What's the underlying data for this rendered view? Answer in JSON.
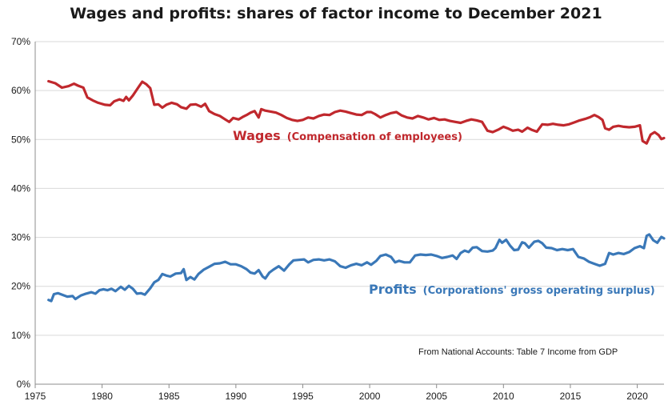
{
  "chart_data": {
    "type": "line",
    "title": "Wages and profits: shares of factor income to December  2021",
    "xlim": [
      1975,
      2022
    ],
    "ylim": [
      0,
      70
    ],
    "x_ticks": [
      "1975",
      "1980",
      "1985",
      "1990",
      "1995",
      "2000",
      "2005",
      "2010",
      "2015",
      "2020"
    ],
    "y_ticks": [
      "0%",
      "10%",
      "20%",
      "30%",
      "40%",
      "50%",
      "60%",
      "70%"
    ],
    "grid": "horizontal",
    "series": [
      {
        "name": "Wages",
        "label_suffix": "(Compensation of employees)",
        "color": "#c0282d",
        "points": [
          [
            1976.0,
            61.9
          ],
          [
            1976.5,
            61.5
          ],
          [
            1977.0,
            60.6
          ],
          [
            1977.5,
            60.9
          ],
          [
            1977.9,
            61.4
          ],
          [
            1978.2,
            61.0
          ],
          [
            1978.6,
            60.6
          ],
          [
            1978.9,
            58.6
          ],
          [
            1979.3,
            58.0
          ],
          [
            1979.7,
            57.5
          ],
          [
            1980.2,
            57.1
          ],
          [
            1980.6,
            57.0
          ],
          [
            1980.9,
            57.8
          ],
          [
            1981.3,
            58.2
          ],
          [
            1981.6,
            57.9
          ],
          [
            1981.8,
            58.7
          ],
          [
            1982.0,
            58.0
          ],
          [
            1982.3,
            59.0
          ],
          [
            1982.6,
            60.2
          ],
          [
            1982.8,
            61.0
          ],
          [
            1983.0,
            61.8
          ],
          [
            1983.3,
            61.3
          ],
          [
            1983.6,
            60.5
          ],
          [
            1983.9,
            57.1
          ],
          [
            1984.2,
            57.2
          ],
          [
            1984.5,
            56.5
          ],
          [
            1984.8,
            57.1
          ],
          [
            1985.2,
            57.5
          ],
          [
            1985.6,
            57.2
          ],
          [
            1985.9,
            56.6
          ],
          [
            1986.3,
            56.3
          ],
          [
            1986.6,
            57.1
          ],
          [
            1987.0,
            57.2
          ],
          [
            1987.4,
            56.7
          ],
          [
            1987.7,
            57.3
          ],
          [
            1988.0,
            55.8
          ],
          [
            1988.4,
            55.2
          ],
          [
            1988.8,
            54.8
          ],
          [
            1989.2,
            54.1
          ],
          [
            1989.5,
            53.6
          ],
          [
            1989.8,
            54.4
          ],
          [
            1990.2,
            54.1
          ],
          [
            1990.5,
            54.6
          ],
          [
            1990.8,
            55.0
          ],
          [
            1991.1,
            55.5
          ],
          [
            1991.4,
            55.8
          ],
          [
            1991.7,
            54.5
          ],
          [
            1991.9,
            56.2
          ],
          [
            1992.2,
            55.9
          ],
          [
            1992.6,
            55.7
          ],
          [
            1993.0,
            55.5
          ],
          [
            1993.4,
            55.0
          ],
          [
            1993.8,
            54.4
          ],
          [
            1994.2,
            54.0
          ],
          [
            1994.6,
            53.8
          ],
          [
            1995.0,
            54.0
          ],
          [
            1995.4,
            54.5
          ],
          [
            1995.8,
            54.3
          ],
          [
            1996.2,
            54.8
          ],
          [
            1996.6,
            55.1
          ],
          [
            1997.0,
            55.0
          ],
          [
            1997.4,
            55.6
          ],
          [
            1997.8,
            55.9
          ],
          [
            1998.2,
            55.7
          ],
          [
            1998.6,
            55.4
          ],
          [
            1999.0,
            55.1
          ],
          [
            1999.4,
            55.0
          ],
          [
            1999.8,
            55.6
          ],
          [
            2000.1,
            55.6
          ],
          [
            2000.4,
            55.2
          ],
          [
            2000.8,
            54.5
          ],
          [
            2001.2,
            55.0
          ],
          [
            2001.6,
            55.4
          ],
          [
            2002.0,
            55.6
          ],
          [
            2002.4,
            54.9
          ],
          [
            2002.8,
            54.5
          ],
          [
            2003.2,
            54.3
          ],
          [
            2003.6,
            54.8
          ],
          [
            2004.0,
            54.5
          ],
          [
            2004.4,
            54.1
          ],
          [
            2004.8,
            54.4
          ],
          [
            2005.2,
            54.0
          ],
          [
            2005.6,
            54.1
          ],
          [
            2006.0,
            53.8
          ],
          [
            2006.4,
            53.6
          ],
          [
            2006.8,
            53.4
          ],
          [
            2007.2,
            53.8
          ],
          [
            2007.6,
            54.1
          ],
          [
            2008.0,
            53.9
          ],
          [
            2008.4,
            53.6
          ],
          [
            2008.8,
            51.8
          ],
          [
            2009.2,
            51.5
          ],
          [
            2009.6,
            52.0
          ],
          [
            2010.0,
            52.6
          ],
          [
            2010.3,
            52.3
          ],
          [
            2010.7,
            51.8
          ],
          [
            2011.1,
            52.0
          ],
          [
            2011.4,
            51.6
          ],
          [
            2011.8,
            52.4
          ],
          [
            2012.1,
            52.0
          ],
          [
            2012.5,
            51.6
          ],
          [
            2012.9,
            53.1
          ],
          [
            2013.3,
            53.0
          ],
          [
            2013.7,
            53.2
          ],
          [
            2014.1,
            53.0
          ],
          [
            2014.5,
            52.9
          ],
          [
            2014.9,
            53.1
          ],
          [
            2015.3,
            53.5
          ],
          [
            2015.7,
            53.9
          ],
          [
            2016.1,
            54.2
          ],
          [
            2016.5,
            54.6
          ],
          [
            2016.8,
            55.0
          ],
          [
            2017.1,
            54.6
          ],
          [
            2017.4,
            54.0
          ],
          [
            2017.6,
            52.3
          ],
          [
            2017.9,
            52.0
          ],
          [
            2018.2,
            52.6
          ],
          [
            2018.6,
            52.8
          ],
          [
            2019.0,
            52.6
          ],
          [
            2019.4,
            52.5
          ],
          [
            2019.8,
            52.6
          ],
          [
            2020.2,
            52.9
          ],
          [
            2020.4,
            49.7
          ],
          [
            2020.7,
            49.2
          ],
          [
            2021.0,
            51.0
          ],
          [
            2021.3,
            51.5
          ],
          [
            2021.6,
            50.9
          ],
          [
            2021.8,
            50.1
          ],
          [
            2022.0,
            50.3
          ]
        ]
      },
      {
        "name": "Profits",
        "label_suffix": "(Corporations' gross operating surplus)",
        "color": "#3a78b8",
        "points": [
          [
            1976.0,
            17.2
          ],
          [
            1976.2,
            17.0
          ],
          [
            1976.4,
            18.4
          ],
          [
            1976.7,
            18.6
          ],
          [
            1977.0,
            18.3
          ],
          [
            1977.4,
            17.9
          ],
          [
            1977.8,
            18.0
          ],
          [
            1978.0,
            17.4
          ],
          [
            1978.4,
            18.1
          ],
          [
            1978.8,
            18.5
          ],
          [
            1979.2,
            18.8
          ],
          [
            1979.5,
            18.5
          ],
          [
            1979.8,
            19.2
          ],
          [
            1980.1,
            19.4
          ],
          [
            1980.4,
            19.2
          ],
          [
            1980.7,
            19.5
          ],
          [
            1981.0,
            19.0
          ],
          [
            1981.4,
            19.9
          ],
          [
            1981.7,
            19.3
          ],
          [
            1982.0,
            20.1
          ],
          [
            1982.3,
            19.5
          ],
          [
            1982.6,
            18.5
          ],
          [
            1982.9,
            18.6
          ],
          [
            1983.2,
            18.3
          ],
          [
            1983.6,
            19.6
          ],
          [
            1983.9,
            20.8
          ],
          [
            1984.2,
            21.3
          ],
          [
            1984.5,
            22.5
          ],
          [
            1984.8,
            22.2
          ],
          [
            1985.1,
            22.0
          ],
          [
            1985.5,
            22.6
          ],
          [
            1985.9,
            22.7
          ],
          [
            1986.1,
            23.5
          ],
          [
            1986.3,
            21.3
          ],
          [
            1986.6,
            21.9
          ],
          [
            1986.9,
            21.4
          ],
          [
            1987.2,
            22.5
          ],
          [
            1987.6,
            23.4
          ],
          [
            1988.0,
            24.0
          ],
          [
            1988.4,
            24.6
          ],
          [
            1988.8,
            24.7
          ],
          [
            1989.2,
            25.0
          ],
          [
            1989.6,
            24.5
          ],
          [
            1990.0,
            24.5
          ],
          [
            1990.4,
            24.1
          ],
          [
            1990.8,
            23.5
          ],
          [
            1991.1,
            22.8
          ],
          [
            1991.4,
            22.6
          ],
          [
            1991.7,
            23.3
          ],
          [
            1992.0,
            22.0
          ],
          [
            1992.2,
            21.6
          ],
          [
            1992.5,
            22.8
          ],
          [
            1992.8,
            23.4
          ],
          [
            1993.2,
            24.1
          ],
          [
            1993.6,
            23.2
          ],
          [
            1994.0,
            24.5
          ],
          [
            1994.3,
            25.3
          ],
          [
            1994.7,
            25.4
          ],
          [
            1995.1,
            25.5
          ],
          [
            1995.4,
            24.9
          ],
          [
            1995.8,
            25.4
          ],
          [
            1996.2,
            25.5
          ],
          [
            1996.6,
            25.3
          ],
          [
            1997.0,
            25.5
          ],
          [
            1997.4,
            25.1
          ],
          [
            1997.8,
            24.1
          ],
          [
            1998.2,
            23.8
          ],
          [
            1998.6,
            24.3
          ],
          [
            1999.0,
            24.6
          ],
          [
            1999.4,
            24.3
          ],
          [
            1999.8,
            24.9
          ],
          [
            2000.1,
            24.4
          ],
          [
            2000.5,
            25.2
          ],
          [
            2000.8,
            26.2
          ],
          [
            2001.2,
            26.5
          ],
          [
            2001.6,
            26.0
          ],
          [
            2001.9,
            24.9
          ],
          [
            2002.2,
            25.2
          ],
          [
            2002.6,
            24.9
          ],
          [
            2003.0,
            24.9
          ],
          [
            2003.4,
            26.3
          ],
          [
            2003.8,
            26.5
          ],
          [
            2004.2,
            26.4
          ],
          [
            2004.6,
            26.5
          ],
          [
            2005.0,
            26.2
          ],
          [
            2005.4,
            25.8
          ],
          [
            2005.8,
            26.0
          ],
          [
            2006.2,
            26.3
          ],
          [
            2006.5,
            25.6
          ],
          [
            2006.8,
            26.8
          ],
          [
            2007.1,
            27.3
          ],
          [
            2007.4,
            27.0
          ],
          [
            2007.7,
            27.9
          ],
          [
            2008.0,
            28.0
          ],
          [
            2008.4,
            27.2
          ],
          [
            2008.8,
            27.1
          ],
          [
            2009.2,
            27.3
          ],
          [
            2009.4,
            27.8
          ],
          [
            2009.7,
            29.5
          ],
          [
            2009.9,
            28.9
          ],
          [
            2010.2,
            29.5
          ],
          [
            2010.5,
            28.3
          ],
          [
            2010.8,
            27.4
          ],
          [
            2011.1,
            27.5
          ],
          [
            2011.4,
            29.0
          ],
          [
            2011.6,
            28.8
          ],
          [
            2011.9,
            27.9
          ],
          [
            2012.3,
            29.1
          ],
          [
            2012.6,
            29.3
          ],
          [
            2012.9,
            28.8
          ],
          [
            2013.2,
            27.9
          ],
          [
            2013.6,
            27.8
          ],
          [
            2014.0,
            27.4
          ],
          [
            2014.4,
            27.6
          ],
          [
            2014.8,
            27.4
          ],
          [
            2015.2,
            27.6
          ],
          [
            2015.6,
            26.0
          ],
          [
            2016.0,
            25.7
          ],
          [
            2016.4,
            25.0
          ],
          [
            2016.8,
            24.6
          ],
          [
            2017.2,
            24.2
          ],
          [
            2017.6,
            24.6
          ],
          [
            2017.9,
            26.8
          ],
          [
            2018.2,
            26.5
          ],
          [
            2018.6,
            26.8
          ],
          [
            2019.0,
            26.6
          ],
          [
            2019.4,
            27.0
          ],
          [
            2019.8,
            27.8
          ],
          [
            2020.2,
            28.2
          ],
          [
            2020.5,
            27.8
          ],
          [
            2020.7,
            30.3
          ],
          [
            2020.9,
            30.6
          ],
          [
            2021.2,
            29.4
          ],
          [
            2021.5,
            28.9
          ],
          [
            2021.8,
            30.1
          ],
          [
            2022.0,
            29.8
          ]
        ]
      }
    ],
    "annotations": [
      "From National Accounts: Table 7 Income from GDP"
    ]
  }
}
